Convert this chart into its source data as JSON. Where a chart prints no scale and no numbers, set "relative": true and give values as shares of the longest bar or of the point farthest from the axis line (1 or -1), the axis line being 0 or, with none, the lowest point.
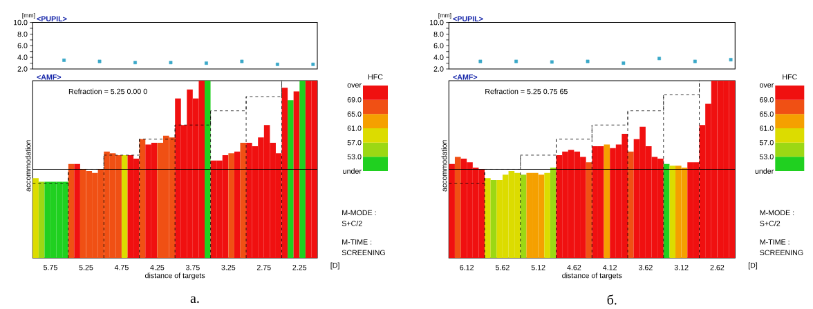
{
  "chart_data": [
    {
      "type": "scatter",
      "title": "<PUPIL>",
      "ylabel": "[mm]",
      "x": [
        5.56,
        5.06,
        4.56,
        4.06,
        3.56,
        3.06,
        2.56,
        2.06
      ],
      "values": [
        3.5,
        3.3,
        3.1,
        3.1,
        3.0,
        3.3,
        2.8,
        2.8
      ],
      "color": "#3aa8c8",
      "marker": "square",
      "xlim": [
        6.0,
        2.0
      ],
      "ylim": [
        2,
        10
      ],
      "yticks": [
        {
          "value": 2,
          "label": "2.0"
        },
        {
          "value": 3,
          "label": null
        },
        {
          "value": 4,
          "label": "4.0"
        },
        {
          "value": 5,
          "label": null
        },
        {
          "value": 6,
          "label": "6.0"
        },
        {
          "value": 7,
          "label": null
        },
        {
          "value": 8,
          "label": "8.0"
        },
        {
          "value": 9,
          "label": null
        },
        {
          "value": 10,
          "label": "10.0"
        }
      ],
      "tick_labels": "y"
    },
    {
      "type": "bar",
      "title": "<AMF>",
      "xlabel": "distance of targets",
      "ylabel": "accommodation",
      "relative": true,
      "xlim": [
        6.0,
        2.0
      ],
      "xticks": [
        5.75,
        5.25,
        4.75,
        4.25,
        3.75,
        3.25,
        2.75,
        2.25
      ],
      "series": [
        {
          "type": "bar",
          "x": [
            5.958,
            5.875,
            5.792,
            5.708,
            5.625,
            5.542,
            5.458,
            5.375,
            5.292,
            5.208,
            5.125,
            5.042,
            4.958,
            4.875,
            4.792,
            4.708,
            4.625,
            4.542,
            4.458,
            4.375,
            4.292,
            4.208,
            4.125,
            4.042,
            3.958,
            3.875,
            3.792,
            3.708,
            3.625,
            3.542,
            3.458,
            3.375,
            3.292,
            3.208,
            3.125,
            3.042,
            2.958,
            2.875,
            2.792,
            2.708,
            2.625,
            2.542,
            2.458,
            2.375,
            2.292,
            2.208,
            2.125,
            2.042
          ],
          "values": [
            0.45,
            0.43,
            0.43,
            0.43,
            0.43,
            0.43,
            0.53,
            0.53,
            0.5,
            0.49,
            0.48,
            0.5,
            0.6,
            0.59,
            0.58,
            0.58,
            0.58,
            0.56,
            0.67,
            0.64,
            0.65,
            0.65,
            0.69,
            0.68,
            0.9,
            0.75,
            0.95,
            0.9,
            1.0,
            1.0,
            0.55,
            0.55,
            0.58,
            0.59,
            0.6,
            0.65,
            0.65,
            0.63,
            0.68,
            0.75,
            0.65,
            0.59,
            0.96,
            0.89,
            0.94,
            1.0,
            1.0,
            1.0
          ],
          "colors": [
            "#dcdc00",
            "#9cd814",
            "#20d020",
            "#20d020",
            "#20d020",
            "#20d020",
            "#f05014",
            "#f01010",
            "#f05014",
            "#f05014",
            "#f05014",
            "#f05014",
            "#f05014",
            "#f05014",
            "#f05014",
            "#dcdc00",
            "#f01010",
            "#f01010",
            "#f05014",
            "#f01010",
            "#f01010",
            "#f05014",
            "#f05014",
            "#f05014",
            "#f01010",
            "#f01010",
            "#f01010",
            "#f01010",
            "#f01010",
            "#20d020",
            "#f01010",
            "#f01010",
            "#f01010",
            "#f05014",
            "#f01010",
            "#f05014",
            "#f01010",
            "#f01010",
            "#f01010",
            "#f01010",
            "#f01010",
            "#f01010",
            "#f01010",
            "#20d020",
            "#f01010",
            "#20d020",
            "#f01010",
            "#f01010"
          ]
        },
        {
          "type": "step",
          "x": [
            6.0,
            5.5,
            5.0,
            4.5,
            4.0,
            3.5,
            3.0,
            2.5
          ],
          "values": [
            0.42,
            0.5,
            0.58,
            0.67,
            0.75,
            0.83,
            0.91,
            1.0
          ],
          "color": "#000000",
          "line_style": "dashed"
        }
      ],
      "ref_lines": [
        {
          "axis": "y",
          "value": 0.5,
          "color": "#000000"
        },
        {
          "axis": "x",
          "value": 5.5,
          "color": "#000000",
          "line_style": "dashed"
        },
        {
          "axis": "x",
          "value": 5.0,
          "color": "#000000",
          "line_style": "dashed"
        },
        {
          "axis": "x",
          "value": 4.5,
          "color": "#000000",
          "line_style": "dashed"
        },
        {
          "axis": "x",
          "value": 4.0,
          "color": "#000000",
          "line_style": "dashed"
        },
        {
          "axis": "x",
          "value": 3.5,
          "color": "#000000",
          "line_style": "dashed"
        },
        {
          "axis": "x",
          "value": 3.0,
          "color": "#000000",
          "line_style": "dashed"
        },
        {
          "axis": "x",
          "value": 2.5,
          "color": "#000000",
          "line_style": "dashed"
        }
      ],
      "clabel": "HFC",
      "clim": [
        49,
        73
      ],
      "cticks": [
        {
          "value": 73,
          "label": "over"
        },
        {
          "value": 69,
          "label": "69.0"
        },
        {
          "value": 65,
          "label": "65.0"
        },
        {
          "value": 61,
          "label": "61.0"
        },
        {
          "value": 57,
          "label": "57.0"
        },
        {
          "value": 53,
          "label": "53.0"
        },
        {
          "value": 49,
          "label": "under"
        }
      ],
      "annotations": [
        "Refraction = 5.25  0.00  0",
        "[D]",
        "M-MODE :",
        "S+C/2",
        "M-TIME :",
        "SCREENING",
        "а."
      ]
    },
    {
      "type": "scatter",
      "title": "<PUPIL>",
      "ylabel": "[mm]",
      "x": [
        5.93,
        5.43,
        4.93,
        4.43,
        3.93,
        3.43,
        2.93,
        2.43
      ],
      "values": [
        3.3,
        3.3,
        3.2,
        3.3,
        3.0,
        3.8,
        3.3,
        3.6
      ],
      "color": "#3aa8c8",
      "marker": "square",
      "xlim": [
        6.37,
        2.37
      ],
      "ylim": [
        2,
        10
      ],
      "yticks": [
        {
          "value": 2,
          "label": "2.0"
        },
        {
          "value": 3,
          "label": null
        },
        {
          "value": 4,
          "label": "4.0"
        },
        {
          "value": 5,
          "label": null
        },
        {
          "value": 6,
          "label": "6.0"
        },
        {
          "value": 7,
          "label": null
        },
        {
          "value": 8,
          "label": "8.0"
        },
        {
          "value": 9,
          "label": null
        },
        {
          "value": 10,
          "label": "10.0"
        }
      ],
      "tick_labels": "y"
    },
    {
      "type": "bar",
      "title": "<AMF>",
      "xlabel": "distance of targets",
      "ylabel": "accommodation",
      "relative": true,
      "xlim": [
        6.37,
        2.37
      ],
      "xticks": [
        6.12,
        5.62,
        5.12,
        4.62,
        4.12,
        3.62,
        3.12,
        2.62
      ],
      "series": [
        {
          "type": "bar",
          "x": [
            6.328,
            6.245,
            6.162,
            6.078,
            5.995,
            5.912,
            5.828,
            5.745,
            5.662,
            5.578,
            5.495,
            5.412,
            5.328,
            5.245,
            5.162,
            5.078,
            4.995,
            4.912,
            4.828,
            4.745,
            4.662,
            4.578,
            4.495,
            4.412,
            4.328,
            4.245,
            4.162,
            4.078,
            3.995,
            3.912,
            3.828,
            3.745,
            3.662,
            3.578,
            3.495,
            3.412,
            3.328,
            3.245,
            3.162,
            3.078,
            2.995,
            2.912,
            2.828,
            2.745,
            2.662,
            2.578,
            2.495,
            2.412
          ],
          "values": [
            0.53,
            0.57,
            0.56,
            0.54,
            0.51,
            0.5,
            0.45,
            0.44,
            0.44,
            0.47,
            0.49,
            0.48,
            0.47,
            0.48,
            0.48,
            0.47,
            0.48,
            0.51,
            0.58,
            0.6,
            0.61,
            0.6,
            0.57,
            0.54,
            0.63,
            0.63,
            0.64,
            0.62,
            0.64,
            0.7,
            0.6,
            0.67,
            0.74,
            0.63,
            0.57,
            0.56,
            0.53,
            0.52,
            0.52,
            0.51,
            0.54,
            0.54,
            0.75,
            0.87,
            1.0,
            1.0,
            1.0,
            1.0
          ],
          "colors": [
            "#f01010",
            "#f05014",
            "#f01010",
            "#f01010",
            "#f01010",
            "#f01010",
            "#dcdc00",
            "#9cd814",
            "#dcdc00",
            "#dcdc00",
            "#dcdc00",
            "#dcdc00",
            "#9cd814",
            "#f5a000",
            "#f5a000",
            "#f5a000",
            "#dcdc00",
            "#9cd814",
            "#f01010",
            "#f01010",
            "#f01010",
            "#f01010",
            "#f01010",
            "#f05014",
            "#f01010",
            "#f01010",
            "#f5a000",
            "#f01010",
            "#f01010",
            "#f01010",
            "#f05014",
            "#f01010",
            "#f01010",
            "#f01010",
            "#f01010",
            "#f01010",
            "#20d020",
            "#dcdc00",
            "#f5a000",
            "#f5a000",
            "#f01010",
            "#f01010",
            "#f01010",
            "#f01010",
            "#f01010",
            "#f01010",
            "#f01010",
            "#f01010"
          ]
        },
        {
          "type": "step",
          "x": [
            6.37,
            5.87,
            5.37,
            4.87,
            4.37,
            3.87,
            3.37,
            2.87
          ],
          "values": [
            0.42,
            0.5,
            0.58,
            0.67,
            0.75,
            0.83,
            0.92,
            1.0
          ],
          "color": "#000000",
          "line_style": "dashed"
        }
      ],
      "ref_lines": [
        {
          "axis": "y",
          "value": 0.5,
          "color": "#000000"
        },
        {
          "axis": "x",
          "value": 5.87,
          "color": "#000000",
          "line_style": "dashed"
        },
        {
          "axis": "x",
          "value": 5.37,
          "color": "#000000",
          "line_style": "dashed"
        },
        {
          "axis": "x",
          "value": 4.87,
          "color": "#000000",
          "line_style": "dashed"
        },
        {
          "axis": "x",
          "value": 4.37,
          "color": "#000000",
          "line_style": "dashed"
        },
        {
          "axis": "x",
          "value": 3.87,
          "color": "#000000",
          "line_style": "dashed"
        },
        {
          "axis": "x",
          "value": 3.37,
          "color": "#000000",
          "line_style": "dashed"
        },
        {
          "axis": "x",
          "value": 2.87,
          "color": "#000000",
          "line_style": "dashed"
        }
      ],
      "clabel": "HFC",
      "clim": [
        49,
        73
      ],
      "cticks": [
        {
          "value": 73,
          "label": "over"
        },
        {
          "value": 69,
          "label": "69.0"
        },
        {
          "value": 65,
          "label": "65.0"
        },
        {
          "value": 61,
          "label": "61.0"
        },
        {
          "value": 57,
          "label": "57.0"
        },
        {
          "value": 53,
          "label": "53.0"
        },
        {
          "value": 49,
          "label": "under"
        }
      ],
      "annotations": [
        "Refraction = 5.25  0.75  65",
        "[D]",
        "M-MODE :",
        "S+C/2",
        "M-TIME :",
        "SCREENING",
        "б."
      ]
    }
  ]
}
